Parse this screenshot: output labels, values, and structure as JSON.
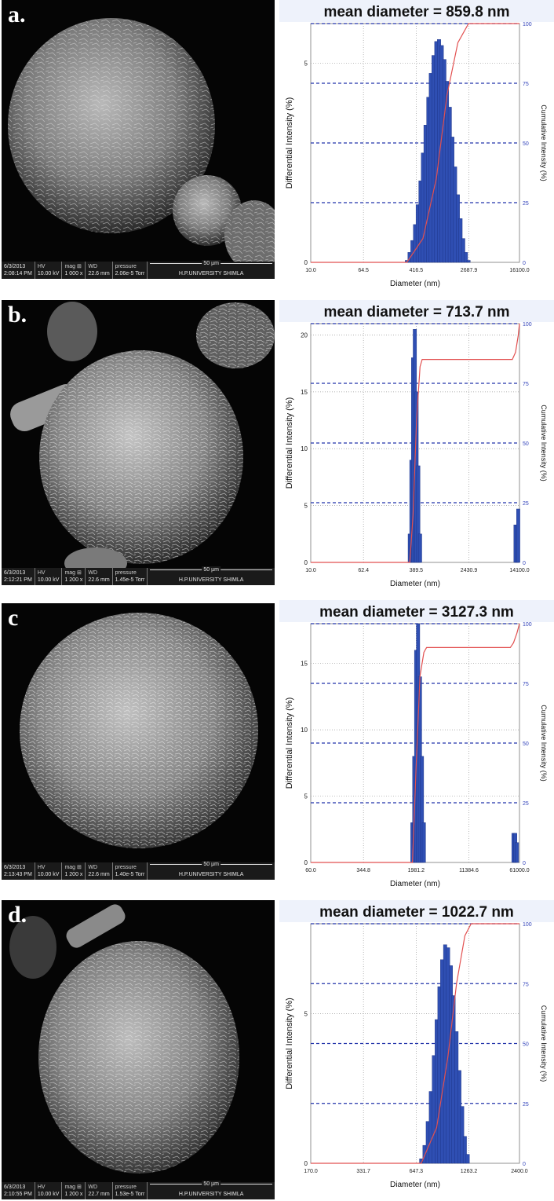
{
  "chart_data": [
    {
      "type": "bar",
      "panel_label": "a.",
      "title": "mean diameter = 859.8 nm",
      "xlabel": "Diameter (nm)",
      "ylabel": "Differential Intensity (%)",
      "y2label": "Cumulative Intensity (%)",
      "x_tick_labels": [
        "10.0",
        "64.5",
        "416.5",
        "2687.9",
        "16100.0"
      ],
      "x_scale": "log",
      "xlim": [
        10.0,
        16100.0
      ],
      "y_ticks": [
        0,
        5
      ],
      "ylim": [
        0,
        6
      ],
      "y2_ticks": [
        0,
        25,
        50,
        75,
        100
      ],
      "differential_intensity": {
        "x": [
          300,
          330,
          365,
          400,
          440,
          485,
          530,
          580,
          640,
          700,
          770,
          850,
          935,
          1030,
          1130,
          1240,
          1370,
          1500,
          1650,
          1820,
          2000,
          2200,
          2420,
          2660
        ],
        "y": [
          0.05,
          0.25,
          0.55,
          0.95,
          1.45,
          2.05,
          2.75,
          3.45,
          4.15,
          4.75,
          5.2,
          5.55,
          5.6,
          5.45,
          5.1,
          4.55,
          3.9,
          3.15,
          2.4,
          1.7,
          1.1,
          0.6,
          0.25,
          0.05
        ]
      },
      "cumulative_intensity": {
        "x": [
          10.0,
          300,
          530,
          850,
          1240,
          1820,
          2660,
          4000,
          16100.0
        ],
        "y": [
          0,
          0,
          10,
          35,
          70,
          92,
          100,
          100,
          100
        ]
      }
    },
    {
      "type": "bar",
      "panel_label": "b.",
      "title": "mean diameter = 713.7 nm",
      "xlabel": "Diameter (nm)",
      "ylabel": "Differential Intensity (%)",
      "y2label": "Cumulative Intensity (%)",
      "x_tick_labels": [
        "10.0",
        "62.4",
        "389.5",
        "2430.9",
        "14100.0"
      ],
      "x_scale": "log",
      "xlim": [
        10.0,
        14100.0
      ],
      "y_ticks": [
        0,
        5,
        10,
        15,
        20
      ],
      "ylim": [
        0,
        21
      ],
      "y2_ticks": [
        0,
        25,
        50,
        75,
        100
      ],
      "differential_intensity": {
        "x": [
          312,
          330,
          350,
          372,
          395,
          420,
          446,
          12300,
          12900,
          13500
        ],
        "y": [
          2.5,
          9.0,
          18.0,
          20.5,
          15.0,
          8.5,
          2.5,
          3.3,
          3.3,
          4.7
        ]
      },
      "cumulative_intensity": {
        "x": [
          10.0,
          312,
          350,
          395,
          446,
          480,
          11000,
          12300,
          13500,
          14100.0
        ],
        "y": [
          0,
          0,
          20,
          60,
          82,
          85,
          85,
          88,
          95,
          100
        ]
      }
    },
    {
      "type": "bar",
      "panel_label": "c",
      "title": "mean diameter = 3127.3 nm",
      "xlabel": "Diameter (nm)",
      "ylabel": "Differential Intensity (%)",
      "y2label": "Cumulative Intensity (%)",
      "x_tick_labels": [
        "60.0",
        "344.8",
        "1981.2",
        "11384.6",
        "61000.0"
      ],
      "x_scale": "log",
      "xlim": [
        60.0,
        61000.0
      ],
      "y_ticks": [
        0,
        5,
        10,
        15
      ],
      "ylim": [
        0,
        18
      ],
      "y2_ticks": [
        0,
        25,
        50,
        75,
        100
      ],
      "differential_intensity": {
        "x": [
          1750,
          1860,
          1981,
          2110,
          2250,
          2400,
          2560,
          50000,
          53000,
          56000
        ],
        "y": [
          3.0,
          8.0,
          16.0,
          18.0,
          14.0,
          8.0,
          3.0,
          2.2,
          2.2,
          1.5
        ]
      },
      "cumulative_intensity": {
        "x": [
          60.0,
          1750,
          1981,
          2250,
          2560,
          2800,
          45000,
          50000,
          56000,
          61000.0
        ],
        "y": [
          0,
          0,
          40,
          78,
          88,
          90,
          90,
          92,
          96,
          100
        ]
      }
    },
    {
      "type": "bar",
      "panel_label": "d.",
      "title": "mean diameter = 1022.7 nm",
      "xlabel": "Diameter (nm)",
      "ylabel": "Differential Intensity (%)",
      "y2label": "Cumulative Intensity (%)",
      "x_tick_labels": [
        "170.0",
        "331.7",
        "647.3",
        "1263.2",
        "2400.0"
      ],
      "x_scale": "log",
      "xlim": [
        170.0,
        2400.0
      ],
      "y_ticks": [
        0,
        5
      ],
      "ylim": [
        0,
        8
      ],
      "y2_ticks": [
        0,
        25,
        50,
        75,
        100
      ],
      "differential_intensity": {
        "x": [
          690,
          720,
          750,
          780,
          810,
          840,
          870,
          900,
          935,
          970,
          1005,
          1040,
          1080,
          1120,
          1160,
          1200,
          1245
        ],
        "y": [
          0.15,
          0.6,
          1.4,
          2.4,
          3.6,
          4.8,
          5.9,
          6.8,
          7.3,
          7.2,
          6.6,
          5.6,
          4.4,
          3.1,
          1.9,
          0.9,
          0.3
        ]
      },
      "cumulative_intensity": {
        "x": [
          170.0,
          690,
          840,
          970,
          1080,
          1200,
          1300,
          1500,
          2400.0
        ],
        "y": [
          0,
          0,
          15,
          45,
          75,
          95,
          100,
          100,
          100
        ]
      }
    }
  ],
  "sem_images": [
    {
      "date": "6/3/2013",
      "time": "2:08:14 PM",
      "hv_label": "HV",
      "hv": "10.00 kV",
      "mag_label": "mag ⊞",
      "mag": "1 000 x",
      "wd_label": "WD",
      "wd": "22.6 mm",
      "pressure_label": "pressure",
      "pressure": "2.06e-5 Torr",
      "scale_bar": "50 µm",
      "institution": "H.P.UNIVERSITY SHIMLA"
    },
    {
      "date": "6/3/2013",
      "time": "2:12:21 PM",
      "hv_label": "HV",
      "hv": "10.00 kV",
      "mag_label": "mag ⊞",
      "mag": "1 200 x",
      "wd_label": "WD",
      "wd": "22.6 mm",
      "pressure_label": "pressure",
      "pressure": "1.45e-5 Torr",
      "scale_bar": "50 µm",
      "institution": "H.P.UNIVERSITY SHIMLA"
    },
    {
      "date": "6/3/2013",
      "time": "2:13:43 PM",
      "hv_label": "HV",
      "hv": "10.00 kV",
      "mag_label": "mag ⊞",
      "mag": "1 200 x",
      "wd_label": "WD",
      "wd": "22.6 mm",
      "pressure_label": "pressure",
      "pressure": "1.40e-5 Torr",
      "scale_bar": "50 µm",
      "institution": "H.P.UNIVERSITY SHIMLA"
    },
    {
      "date": "6/3/2013",
      "time": "2:10:55 PM",
      "hv_label": "HV",
      "hv": "10.00 kV",
      "mag_label": "mag ⊞",
      "mag": "1 200 x",
      "wd_label": "WD",
      "wd": "22.7 mm",
      "pressure_label": "pressure",
      "pressure": "1.53e-5 Torr",
      "scale_bar": "50 µm",
      "institution": "H.P.UNIVERSITY SHIMLA"
    }
  ],
  "colors": {
    "bars": "#2f4fb3",
    "bar_edge": "#1a2f80",
    "cumulative_line": "#e25050",
    "grid_dashed": "#2233aa",
    "grid_dotted": "#999999",
    "title_bg": "#eef2fb",
    "secondary_axis_text": "#3344bb"
  }
}
